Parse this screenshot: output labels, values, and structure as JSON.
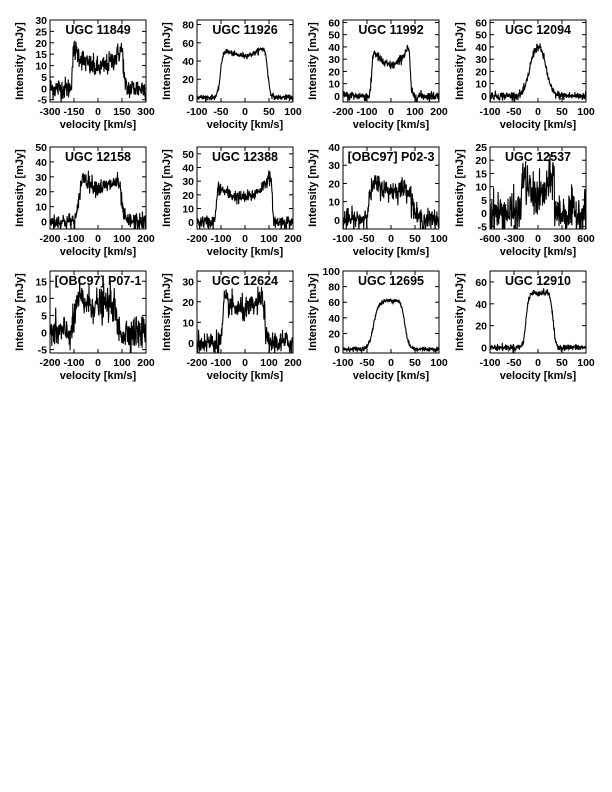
{
  "chart_data": [
    {
      "type": "line",
      "title": "UGC 11849",
      "xlabel": "velocity [km/s]",
      "ylabel": "Intensity [mJy]",
      "xlim": [
        -300,
        300
      ],
      "ylim": [
        -6,
        30
      ],
      "xticks": [
        -300,
        -150,
        0,
        150,
        300
      ],
      "yticks": [
        -5,
        0,
        5,
        10,
        15,
        20,
        25,
        30
      ],
      "profile": {
        "v0": 0,
        "width": 320,
        "horns": [
          19,
          19
        ],
        "mid": 9,
        "edge": 10,
        "rms": 2.5
      }
    },
    {
      "type": "line",
      "title": "UGC 11926",
      "xlabel": "velocity [km/s]",
      "ylabel": "Intensity [mJy]",
      "xlim": [
        -100,
        100
      ],
      "ylim": [
        -5,
        85
      ],
      "xticks": [
        -100,
        -50,
        0,
        50,
        100
      ],
      "yticks": [
        0,
        20,
        40,
        60,
        80
      ],
      "profile": {
        "v0": -2,
        "width": 98,
        "horns": [
          55,
          60
        ],
        "mid": 46,
        "edge": 7,
        "rms": 1.5
      }
    },
    {
      "type": "line",
      "title": "UGC 11992",
      "xlabel": "velocity [km/s]",
      "ylabel": "Intensity [mJy]",
      "xlim": [
        -200,
        200
      ],
      "ylim": [
        -5,
        62
      ],
      "xticks": [
        -200,
        -100,
        0,
        100,
        200
      ],
      "yticks": [
        0,
        10,
        20,
        30,
        40,
        50,
        60
      ],
      "profile": {
        "v0": 0,
        "width": 160,
        "horns": [
          40,
          44
        ],
        "mid": 25,
        "edge": 7,
        "rms": 2
      }
    },
    {
      "type": "line",
      "title": "UGC 12094",
      "xlabel": "velocity [km/s]",
      "ylabel": "Intensity [mJy]",
      "xlim": [
        -100,
        100
      ],
      "ylim": [
        -5,
        62
      ],
      "xticks": [
        -100,
        -50,
        0,
        50,
        100
      ],
      "yticks": [
        0,
        10,
        20,
        30,
        40,
        50,
        60
      ],
      "profile": {
        "v0": 0,
        "width": 36,
        "horns": [
          42,
          42
        ],
        "mid": 42,
        "edge": 14,
        "rms": 1.8
      }
    },
    {
      "type": "line",
      "title": "UGC 12158",
      "xlabel": "velocity [km/s]",
      "ylabel": "Intensity [mJy]",
      "xlim": [
        -200,
        200
      ],
      "ylim": [
        -5,
        50
      ],
      "xticks": [
        -200,
        -100,
        0,
        100,
        200
      ],
      "yticks": [
        0,
        10,
        20,
        30,
        40,
        50
      ],
      "profile": {
        "v0": 10,
        "width": 175,
        "horns": [
          35,
          30
        ],
        "mid": 23,
        "edge": 14,
        "rms": 3
      }
    },
    {
      "type": "line",
      "title": "UGC 12388",
      "xlabel": "velocity [km/s]",
      "ylabel": "Intensity [mJy]",
      "xlim": [
        -200,
        200
      ],
      "ylim": [
        -5,
        55
      ],
      "xticks": [
        -200,
        -100,
        0,
        100,
        200
      ],
      "yticks": [
        0,
        10,
        20,
        30,
        40,
        50
      ],
      "profile": {
        "v0": -3,
        "width": 232,
        "horns": [
          27,
          37
        ],
        "mid": 18,
        "edge": 7,
        "rms": 2.5
      }
    },
    {
      "type": "line",
      "title": "[OBC97] P02-3",
      "xlabel": "velocity [km/s]",
      "ylabel": "Intensity [mJy]",
      "xlim": [
        -100,
        100
      ],
      "ylim": [
        -5,
        40
      ],
      "xticks": [
        -100,
        -50,
        0,
        50,
        100
      ],
      "yticks": [
        0,
        10,
        20,
        30,
        40
      ],
      "profile": {
        "v0": 0,
        "width": 88,
        "horns": [
          25,
          21
        ],
        "mid": 16,
        "edge": 11,
        "rms": 3
      }
    },
    {
      "type": "line",
      "title": "UGC 12537",
      "xlabel": "velocity [km/s]",
      "ylabel": "Intensity [mJy]",
      "xlim": [
        -600,
        600
      ],
      "ylim": [
        -6,
        25
      ],
      "xticks": [
        -600,
        -300,
        0,
        300,
        600
      ],
      "yticks": [
        -5,
        0,
        5,
        10,
        15,
        20,
        25
      ],
      "profile": {
        "v0": 0,
        "width": 410,
        "horns": [
          16,
          17
        ],
        "mid": 6,
        "edge": 4,
        "rms": 4
      }
    },
    {
      "type": "line",
      "title": "[OBC97] P07-1",
      "xlabel": "velocity [km/s]",
      "ylabel": "Intensity [mJy]",
      "xlim": [
        -200,
        200
      ],
      "ylim": [
        -6,
        18
      ],
      "xticks": [
        -200,
        -100,
        0,
        100,
        200
      ],
      "yticks": [
        -5,
        0,
        5,
        10,
        15
      ],
      "profile": {
        "v0": -10,
        "width": 170,
        "horns": [
          11,
          9
        ],
        "mid": 8,
        "edge": 11,
        "rms": 2.5
      }
    },
    {
      "type": "line",
      "title": "UGC 12624",
      "xlabel": "velocity [km/s]",
      "ylabel": "Intensity [mJy]",
      "xlim": [
        -200,
        200
      ],
      "ylim": [
        -5,
        35
      ],
      "xticks": [
        -200,
        -100,
        0,
        100,
        200
      ],
      "yticks": [
        0,
        10,
        20,
        30
      ],
      "profile": {
        "v0": -5,
        "width": 175,
        "horns": [
          22,
          24
        ],
        "mid": 16,
        "edge": 7,
        "rms": 3
      }
    },
    {
      "type": "line",
      "title": "UGC 12695",
      "xlabel": "velocity [km/s]",
      "ylabel": "Intensity [mJy]",
      "xlim": [
        -100,
        100
      ],
      "ylim": [
        -5,
        100
      ],
      "xticks": [
        -100,
        -50,
        0,
        50,
        100
      ],
      "yticks": [
        0,
        20,
        40,
        60,
        80,
        100
      ],
      "profile": {
        "v0": -5,
        "width": 66,
        "horns": [
          52,
          70
        ],
        "mid": 62,
        "edge": 11,
        "rms": 1.5
      }
    },
    {
      "type": "line",
      "title": "UGC 12910",
      "xlabel": "velocity [km/s]",
      "ylabel": "Intensity [mJy]",
      "xlim": [
        -100,
        100
      ],
      "ylim": [
        -5,
        70
      ],
      "xticks": [
        -100,
        -50,
        0,
        50,
        100
      ],
      "yticks": [
        0,
        20,
        40,
        60
      ],
      "profile": {
        "v0": 3,
        "width": 56,
        "horns": [
          50,
          52
        ],
        "mid": 50,
        "edge": 7,
        "rms": 1.5
      }
    }
  ]
}
